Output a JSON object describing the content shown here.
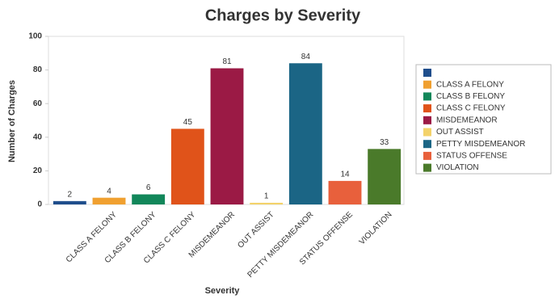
{
  "chart_data": {
    "type": "bar",
    "title": "Charges by Severity",
    "x_label": "Severity",
    "y_label": "Number of Charges",
    "categories": [
      null,
      "CLASS A FELONY",
      "CLASS B FELONY",
      "CLASS C FELONY",
      "MISDEMEANOR",
      "OUT ASSIST",
      "PETTY MISDEMEANOR",
      "STATUS OFFENSE",
      "VIOLATION"
    ],
    "values": [
      2,
      4,
      6,
      45,
      81,
      1,
      84,
      14,
      33
    ],
    "colors": [
      "#1f4e8c",
      "#f0a030",
      "#12875a",
      "#e0531a",
      "#9b1a45",
      "#f3d26a",
      "#1b6585",
      "#e8603c",
      "#4a7a2a"
    ],
    "ylim": [
      0,
      100
    ],
    "yticks": [
      0,
      20,
      40,
      60,
      80,
      100
    ],
    "grid": false,
    "legend": "right"
  }
}
